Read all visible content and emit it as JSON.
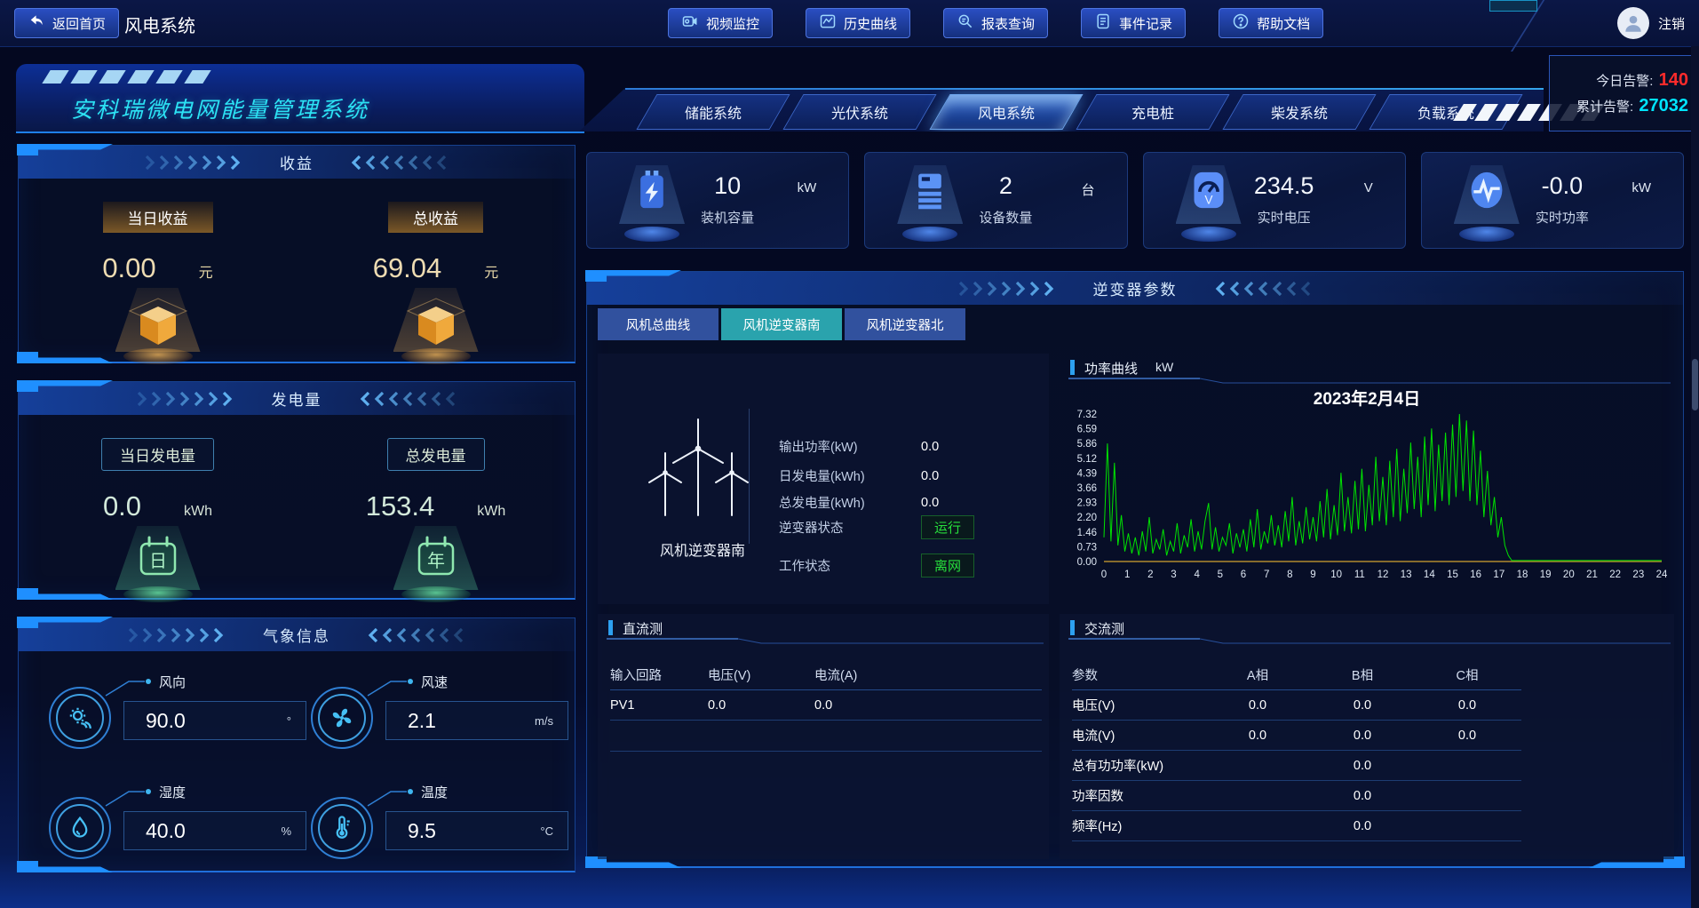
{
  "topbar": {
    "back_label": "返回首页",
    "page_title": "风电系统",
    "nav_buttons": [
      {
        "label": "视频监控"
      },
      {
        "label": "历史曲线"
      },
      {
        "label": "报表查询"
      },
      {
        "label": "事件记录"
      },
      {
        "label": "帮助文档"
      }
    ],
    "logout_label": "注销"
  },
  "banner": {
    "system_title": "安科瑞微电网能量管理系统",
    "tabs": [
      {
        "label": "储能系统",
        "active": false
      },
      {
        "label": "光伏系统",
        "active": false
      },
      {
        "label": "风电系统",
        "active": true
      },
      {
        "label": "充电桩",
        "active": false
      },
      {
        "label": "柴发系统",
        "active": false
      },
      {
        "label": "负载系统",
        "active": false
      }
    ],
    "alarms": {
      "today_label": "今日告警:",
      "today_value": "140",
      "total_label": "累计告警:",
      "total_value": "27032"
    }
  },
  "colors": {
    "alarm_today": "#ff2b2b",
    "alarm_total": "#00e4ff",
    "accent_cyan": "#2ce2f4",
    "status_green": "#27e03c",
    "chart_line": "#00e400",
    "chart_baseline": "#b08a2e"
  },
  "revenue_panel": {
    "title": "收益",
    "items": [
      {
        "label": "当日收益",
        "value": "0.00",
        "unit": "元"
      },
      {
        "label": "总收益",
        "value": "69.04",
        "unit": "元"
      }
    ]
  },
  "generation_panel": {
    "title": "发电量",
    "items": [
      {
        "label": "当日发电量",
        "value": "0.0",
        "unit": "kWh",
        "icon_char": "日"
      },
      {
        "label": "总发电量",
        "value": "153.4",
        "unit": "kWh",
        "icon_char": "年"
      }
    ]
  },
  "weather_panel": {
    "title": "气象信息",
    "items": [
      {
        "label": "风向",
        "value": "90.0",
        "unit": "°"
      },
      {
        "label": "风速",
        "value": "2.1",
        "unit": "m/s"
      },
      {
        "label": "湿度",
        "value": "40.0",
        "unit": "%"
      },
      {
        "label": "温度",
        "value": "9.5",
        "unit": "°C"
      }
    ]
  },
  "stat_cards": [
    {
      "value": "10",
      "unit": "kW",
      "label": "装机容量"
    },
    {
      "value": "2",
      "unit": "台",
      "label": "设备数量"
    },
    {
      "value": "234.5",
      "unit": "V",
      "label": "实时电压"
    },
    {
      "value": "-0.0",
      "unit": "kW",
      "label": "实时功率"
    }
  ],
  "inverter_panel": {
    "title": "逆变器参数",
    "tabs": [
      {
        "label": "风机总曲线",
        "active": false
      },
      {
        "label": "风机逆变器南",
        "active": true
      },
      {
        "label": "风机逆变器北",
        "active": false
      }
    ],
    "detail": {
      "device_name": "风机逆变器南",
      "params": [
        {
          "label": "输出功率(kW)",
          "value": "0.0"
        },
        {
          "label": "日发电量(kWh)",
          "value": "0.0"
        },
        {
          "label": "总发电量(kWh)",
          "value": "0.0"
        }
      ],
      "statuses": [
        {
          "label": "逆变器状态",
          "value": "运行"
        },
        {
          "label": "工作状态",
          "value": "离网"
        }
      ]
    },
    "chart_section": {
      "title": "功率曲线",
      "unit": "kW"
    },
    "dc_section": {
      "title": "直流测",
      "headers": [
        "输入回路",
        "电压(V)",
        "电流(A)"
      ],
      "rows": [
        [
          "PV1",
          "0.0",
          "0.0"
        ]
      ]
    },
    "ac_section": {
      "title": "交流测",
      "headers": [
        "参数",
        "A相",
        "B相",
        "C相"
      ],
      "rows": [
        [
          "电压(V)",
          "0.0",
          "0.0",
          "0.0"
        ],
        [
          "电流(V)",
          "0.0",
          "0.0",
          "0.0"
        ],
        [
          "总有功功率(kW)",
          "",
          "0.0",
          ""
        ],
        [
          "功率因数",
          "",
          "0.0",
          ""
        ],
        [
          "频率(Hz)",
          "",
          "0.0",
          ""
        ]
      ]
    }
  },
  "chart_data": {
    "type": "line",
    "title": "2023年2月4日",
    "series_name": "功率曲线",
    "ylabel": "kW",
    "series_color": "#00e400",
    "baseline_color": "#b08a2e",
    "xlim": [
      0,
      24
    ],
    "ylim": [
      0,
      7.32
    ],
    "y_ticks": [
      "7.32",
      "6.59",
      "5.86",
      "5.12",
      "4.39",
      "3.66",
      "2.93",
      "2.20",
      "1.46",
      "0.73",
      "0.00"
    ],
    "x_ticks": [
      0,
      1,
      2,
      3,
      4,
      5,
      6,
      7,
      8,
      9,
      10,
      11,
      12,
      13,
      14,
      15,
      16,
      17,
      18,
      19,
      20,
      21,
      22,
      23,
      24
    ],
    "x_start": 0,
    "x_step": 0.15,
    "values": [
      1.2,
      5.86,
      1.0,
      4.9,
      0.8,
      2.3,
      0.5,
      1.4,
      0.4,
      1.2,
      0.3,
      1.5,
      0.5,
      2.2,
      0.4,
      1.1,
      0.6,
      1.6,
      0.3,
      1.0,
      0.5,
      1.9,
      0.4,
      1.3,
      0.7,
      2.1,
      0.5,
      1.5,
      0.6,
      2.0,
      2.9,
      0.6,
      1.7,
      0.5,
      1.2,
      0.8,
      1.9,
      0.4,
      1.4,
      0.7,
      1.6,
      0.5,
      2.1,
      0.7,
      2.6,
      0.6,
      1.5,
      0.9,
      2.3,
      0.8,
      1.8,
      0.7,
      2.5,
      1.0,
      3.2,
      0.8,
      2.0,
      0.9,
      2.7,
      1.1,
      2.2,
      1.0,
      3.0,
      1.2,
      3.6,
      1.1,
      2.8,
      1.3,
      4.4,
      1.5,
      3.2,
      1.4,
      4.0,
      1.6,
      4.6,
      1.5,
      3.8,
      1.8,
      5.2,
      2.0,
      4.2,
      1.8,
      5.0,
      2.2,
      5.6,
      2.0,
      4.6,
      2.4,
      5.9,
      2.6,
      5.2,
      2.2,
      6.2,
      2.8,
      6.6,
      2.5,
      5.8,
      3.0,
      6.4,
      2.8,
      6.8,
      3.2,
      7.32,
      3.5,
      7.0,
      3.0,
      6.5,
      2.8,
      5.5,
      2.2,
      4.5,
      1.8,
      3.2,
      1.2,
      2.2,
      0.8,
      0.3
    ],
    "tail": [
      [
        17.55,
        0.05
      ],
      [
        24,
        0.05
      ]
    ]
  }
}
